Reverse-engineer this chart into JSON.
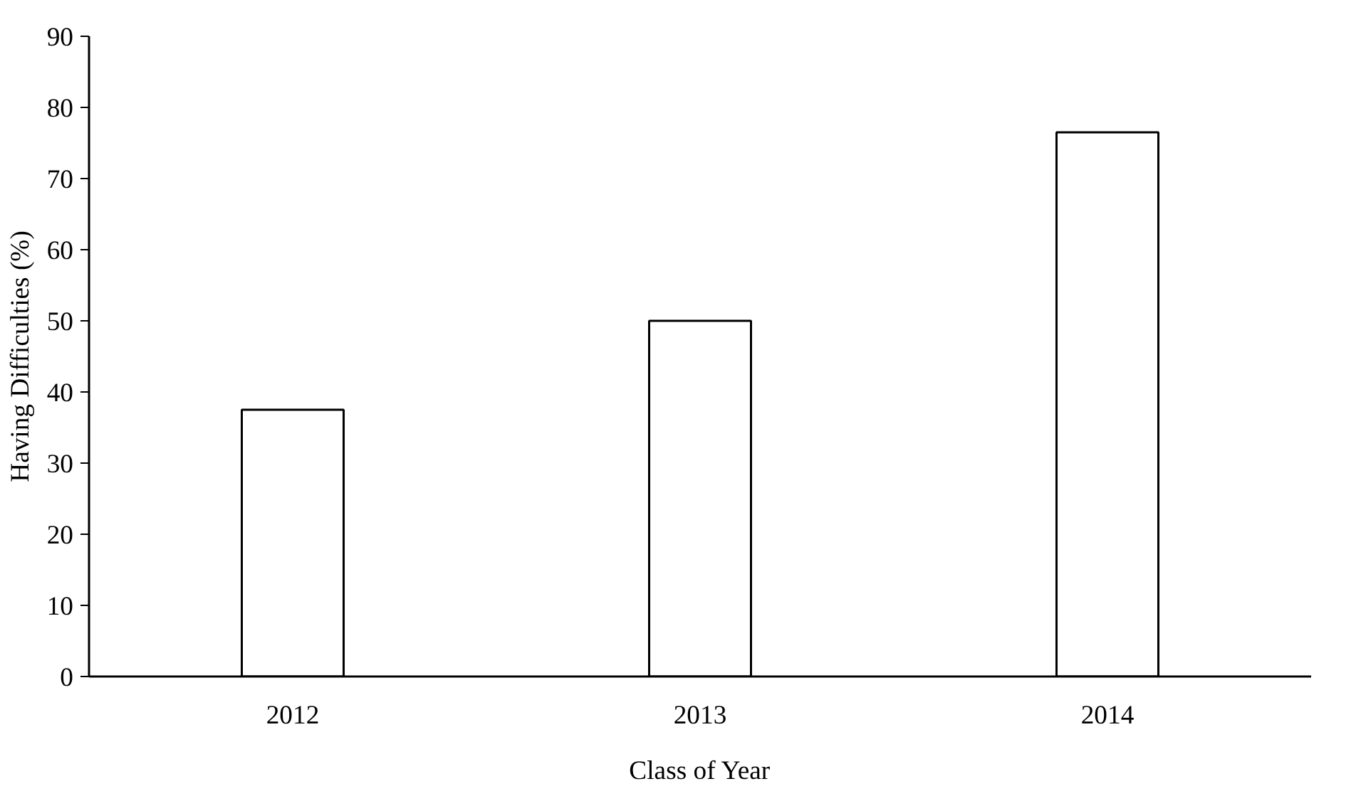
{
  "chart_data": {
    "type": "bar",
    "xlabel": "Class of Year",
    "ylabel": "Having Difficulties (%)",
    "categories": [
      "2012",
      "2013",
      "2014"
    ],
    "values": [
      37.5,
      50,
      76.5
    ],
    "color": "#ffffff",
    "ylim": [
      0,
      90
    ],
    "yticks": [
      0,
      10,
      20,
      30,
      40,
      50,
      60,
      70,
      80,
      90
    ],
    "grid": false
  }
}
